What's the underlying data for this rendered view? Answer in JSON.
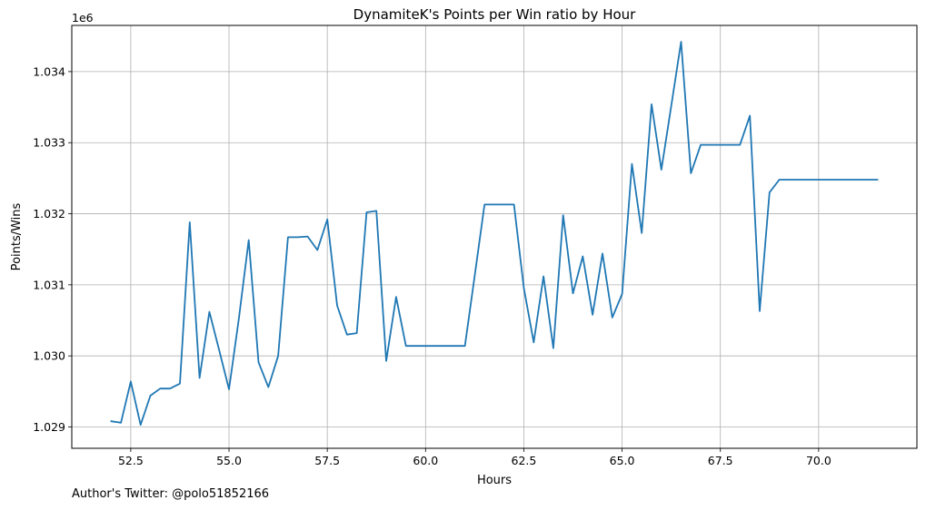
{
  "chart_data": {
    "type": "line",
    "title": "DynamiteK's Points per Win ratio by Hour",
    "xlabel": "Hours",
    "ylabel": "Points/Wins",
    "y_offset_label": "1e6",
    "xlim": [
      51.0,
      72.5
    ],
    "ylim": [
      1028.7,
      1034.65
    ],
    "x_ticks": [
      52.5,
      55.0,
      57.5,
      60.0,
      62.5,
      65.0,
      67.5,
      70.0
    ],
    "x_tick_labels": [
      "52.5",
      "55.0",
      "57.5",
      "60.0",
      "62.5",
      "65.0",
      "67.5",
      "70.0"
    ],
    "y_ticks": [
      1029,
      1030,
      1031,
      1032,
      1033,
      1034
    ],
    "y_tick_labels": [
      "1.029",
      "1.030",
      "1.031",
      "1.032",
      "1.033",
      "1.034"
    ],
    "grid": true,
    "series": [
      {
        "color": "#1f77b4",
        "x": [
          52.0,
          52.25,
          52.5,
          52.75,
          53.0,
          53.25,
          53.5,
          53.75,
          54.0,
          54.25,
          54.5,
          54.75,
          55.0,
          55.25,
          55.5,
          55.75,
          56.0,
          56.25,
          56.5,
          56.75,
          57.0,
          57.25,
          57.5,
          57.75,
          58.0,
          58.25,
          58.5,
          58.75,
          59.0,
          59.25,
          59.5,
          59.75,
          60.0,
          60.25,
          60.5,
          60.75,
          61.0,
          61.25,
          61.5,
          61.75,
          62.0,
          62.25,
          62.5,
          62.75,
          63.0,
          63.25,
          63.5,
          63.75,
          64.0,
          64.25,
          64.5,
          64.75,
          65.0,
          65.25,
          65.5,
          65.75,
          66.0,
          66.25,
          66.5,
          66.75,
          67.0,
          67.25,
          67.5,
          67.75,
          68.0,
          68.25,
          68.5,
          68.75,
          69.0,
          69.25,
          69.5,
          69.75,
          70.0,
          70.25,
          70.5,
          70.75,
          71.0,
          71.25,
          71.5
        ],
        "y": [
          1029.08,
          1029.06,
          1029.64,
          1029.03,
          1029.44,
          1029.54,
          1029.54,
          1029.61,
          1031.88,
          1029.69,
          1030.62,
          1030.08,
          1029.53,
          1030.52,
          1031.63,
          1029.91,
          1029.56,
          1030.0,
          1031.67,
          1031.67,
          1031.68,
          1031.49,
          1031.92,
          1030.71,
          1030.3,
          1030.32,
          1032.02,
          1032.04,
          1029.93,
          1030.83,
          1030.14,
          1030.14,
          1030.14,
          1030.14,
          1030.14,
          1030.14,
          1030.14,
          1031.13,
          1032.13,
          1032.13,
          1032.13,
          1032.13,
          1030.96,
          1030.19,
          1031.12,
          1030.11,
          1031.98,
          1030.88,
          1031.4,
          1030.58,
          1031.44,
          1030.54,
          1030.87,
          1032.7,
          1031.73,
          1033.54,
          1032.62,
          1033.52,
          1034.42,
          1032.57,
          1032.97,
          1032.97,
          1032.97,
          1032.97,
          1032.97,
          1033.38,
          1030.63,
          1032.3,
          1032.48,
          1032.48,
          1032.48,
          1032.48,
          1032.48,
          1032.48,
          1032.48,
          1032.48,
          1032.48,
          1032.48,
          1032.48
        ]
      }
    ]
  },
  "footer": {
    "author_text": "Author's Twitter: @polo51852166"
  }
}
